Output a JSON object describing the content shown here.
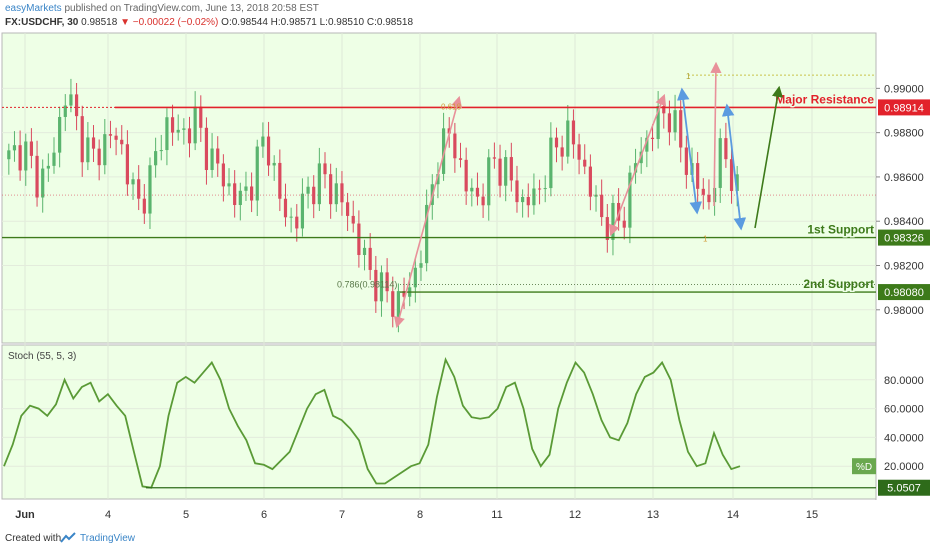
{
  "header": {
    "publisher": "easyMarkets",
    "published_text": "published on TradingView.com, June 13, 2018 20:58 EST",
    "symbol": "FX:USDCHF, 30",
    "last": "0.98518",
    "change": "−0.00022 (−0.02%)",
    "open": "O:0.98544",
    "high": "H:0.98571",
    "low": "L:0.98510",
    "close": "C:0.98518"
  },
  "footer": {
    "created_with": "Created with",
    "brand": "TradingView"
  },
  "colors": {
    "background": "#eeffe6",
    "candle_up": "#5ab46e",
    "candle_down": "#d94a5e",
    "resistance": "#e2222b",
    "support": "#3d7a1a",
    "stoch": "#5a9a36",
    "arrow_pink": "#e8919a",
    "arrow_blue": "#5b9be0",
    "arrow_green": "#3d7a1a"
  },
  "chart_data": [
    {
      "type": "candlestick",
      "panel": "price",
      "x": [
        "Jun",
        "4",
        "5",
        "6",
        "7",
        "8",
        "11",
        "12",
        "13",
        "14",
        "15"
      ],
      "ylim": [
        0.9785,
        0.9925
      ],
      "y_ticks": [
        "0.99000",
        "0.98800",
        "0.98600",
        "0.98400",
        "0.98200",
        "0.98000"
      ],
      "last_price": 0.98518,
      "approx_close_path": [
        0.9868,
        0.9874,
        0.9858,
        0.9866,
        0.99,
        0.9878,
        0.9868,
        0.988,
        0.9872,
        0.9845,
        0.9862,
        0.9885,
        0.9878,
        0.9886,
        0.987,
        0.986,
        0.9848,
        0.9858,
        0.988,
        0.9848,
        0.9838,
        0.9855,
        0.986,
        0.9852,
        0.984,
        0.982,
        0.981,
        0.9803,
        0.9808,
        0.983,
        0.987,
        0.988,
        0.9855,
        0.985,
        0.9868,
        0.986,
        0.9848,
        0.9852,
        0.987,
        0.988,
        0.987,
        0.9848,
        0.9838,
        0.9842,
        0.987,
        0.988,
        0.9892,
        0.9875,
        0.9858,
        0.9848,
        0.9875,
        0.9852
      ],
      "levels": [
        {
          "label": "Major Resistance",
          "value": 0.98914
        },
        {
          "label": "1st Support",
          "value": 0.98326
        },
        {
          "label": "2nd Support",
          "value": 0.9808
        }
      ],
      "level_tags": [
        "0.98914",
        "0.98326",
        "0.98080"
      ],
      "fib_labels": [
        "0.618",
        "0.786(0.98114)",
        "1",
        "1"
      ]
    },
    {
      "type": "line",
      "panel": "oscillator",
      "indicator": "Stoch (55, 5, 3)",
      "series": [
        {
          "name": "%D",
          "values": [
            20,
            35,
            55,
            62,
            60,
            55,
            63,
            80,
            67,
            75,
            78,
            65,
            70,
            62,
            55,
            30,
            6,
            5.05,
            20,
            55,
            78,
            82,
            78,
            85,
            92,
            80,
            60,
            48,
            38,
            22,
            21,
            18,
            24,
            30,
            45,
            60,
            70,
            73,
            55,
            52,
            46,
            38,
            18,
            8,
            8,
            12,
            16,
            20,
            22,
            35,
            68,
            94,
            82,
            62,
            54,
            53,
            54,
            60,
            75,
            78,
            60,
            32,
            20,
            28,
            60,
            78,
            92,
            85,
            70,
            52,
            40,
            38,
            50,
            70,
            82,
            85,
            92,
            80,
            52,
            30,
            20,
            22,
            43,
            28,
            18,
            20
          ]
        }
      ],
      "ylim": [
        0,
        100
      ],
      "y_ticks": [
        "80.0000",
        "60.0000",
        "40.0000",
        "20.0000"
      ],
      "level_tag": "5.0507",
      "legend_label": "%D"
    }
  ]
}
